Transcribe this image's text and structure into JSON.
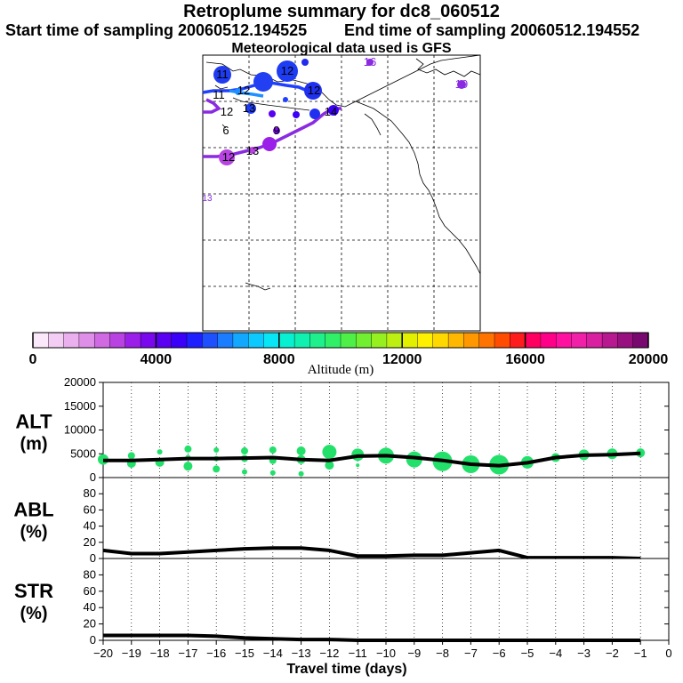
{
  "titles": {
    "line1": "Retroplume summary for dc8_060512",
    "line2a": "Start time of sampling 20060512.194525",
    "line2b": "End time of sampling 20060512.194552",
    "line3": "Meteorological data used is GFS"
  },
  "colors": {
    "green": "#22e06a",
    "line": "#000000",
    "traj_blue": "#2040ff",
    "traj_purple": "#8a2be2",
    "traj_lightblue": "#1e90ff"
  },
  "map_labels": [
    "11",
    "12",
    "11",
    "12",
    "14",
    "12",
    "13",
    "16",
    "19",
    "12",
    "9",
    "6",
    "12",
    "13",
    "13"
  ],
  "colorbar": {
    "title": "Altitude (m)",
    "ticks": [
      "0",
      "4000",
      "8000",
      "12000",
      "16000",
      "20000"
    ],
    "colors": [
      "#fbe8fb",
      "#f3cdf3",
      "#eab0ee",
      "#df8fe8",
      "#cf6ae3",
      "#b843e2",
      "#9a1fe8",
      "#7a08ee",
      "#5a00f2",
      "#3a00f8",
      "#1f20ff",
      "#1e50ff",
      "#1a7dff",
      "#12a8ff",
      "#0cc9ff",
      "#08e6f5",
      "#08f0d2",
      "#10f0b0",
      "#1ef08c",
      "#30f068",
      "#4ef048",
      "#70f030",
      "#96f020",
      "#bdf010",
      "#e2f000",
      "#fff000",
      "#ffd800",
      "#ffb800",
      "#ff9800",
      "#ff7400",
      "#ff4c00",
      "#ff1c1c",
      "#ff0060",
      "#ff0088",
      "#ff10a0",
      "#f020a8",
      "#d820a0",
      "#b81890",
      "#981080",
      "#780870"
    ]
  },
  "chart_data": [
    {
      "type": "line",
      "ylabel": "ALT\n(m)",
      "ylabel_top": "ALT",
      "ylabel_bottom": "(m)",
      "ylim": [
        0,
        20000
      ],
      "yticks": [
        "0",
        "5000",
        "10000",
        "15000",
        "20000"
      ],
      "xlim": [
        -20,
        0
      ],
      "x": [
        -20,
        -19,
        -18,
        -17,
        -16,
        -15,
        -14,
        -13,
        -12,
        -11,
        -10,
        -9,
        -8,
        -7,
        -6,
        -5,
        -4,
        -3,
        -2,
        -1
      ],
      "values": [
        3600,
        3600,
        3800,
        4000,
        4000,
        4100,
        4200,
        3800,
        3600,
        4500,
        4600,
        4200,
        3600,
        2800,
        2500,
        3100,
        4200,
        4700,
        4800,
        5100
      ],
      "markers": [
        {
          "x": -20,
          "y": 3800,
          "r": 6
        },
        {
          "x": -19,
          "y": 4600,
          "r": 4
        },
        {
          "x": -19,
          "y": 3000,
          "r": 5
        },
        {
          "x": -18,
          "y": 5400,
          "r": 3
        },
        {
          "x": -18,
          "y": 3200,
          "r": 5
        },
        {
          "x": -17,
          "y": 6000,
          "r": 4
        },
        {
          "x": -17,
          "y": 4200,
          "r": 3
        },
        {
          "x": -17,
          "y": 2400,
          "r": 5
        },
        {
          "x": -16,
          "y": 5800,
          "r": 3
        },
        {
          "x": -16,
          "y": 4000,
          "r": 3
        },
        {
          "x": -16,
          "y": 1800,
          "r": 4
        },
        {
          "x": -15,
          "y": 5600,
          "r": 4
        },
        {
          "x": -15,
          "y": 4000,
          "r": 4
        },
        {
          "x": -15,
          "y": 1200,
          "r": 3
        },
        {
          "x": -14,
          "y": 5800,
          "r": 4
        },
        {
          "x": -14,
          "y": 3600,
          "r": 4
        },
        {
          "x": -14,
          "y": 1000,
          "r": 3
        },
        {
          "x": -13,
          "y": 5600,
          "r": 5
        },
        {
          "x": -13,
          "y": 3800,
          "r": 5
        },
        {
          "x": -13,
          "y": 800,
          "r": 3
        },
        {
          "x": -12,
          "y": 5400,
          "r": 8
        },
        {
          "x": -12,
          "y": 2600,
          "r": 5
        },
        {
          "x": -11,
          "y": 4800,
          "r": 7
        },
        {
          "x": -11,
          "y": 2600,
          "r": 2
        },
        {
          "x": -10,
          "y": 4600,
          "r": 9
        },
        {
          "x": -9,
          "y": 3800,
          "r": 9
        },
        {
          "x": -8,
          "y": 3400,
          "r": 11
        },
        {
          "x": -7,
          "y": 2800,
          "r": 10
        },
        {
          "x": -6,
          "y": 2700,
          "r": 11
        },
        {
          "x": -5,
          "y": 3200,
          "r": 7
        },
        {
          "x": -4,
          "y": 4200,
          "r": 5
        },
        {
          "x": -3,
          "y": 4800,
          "r": 6
        },
        {
          "x": -2,
          "y": 5000,
          "r": 6
        },
        {
          "x": -1,
          "y": 5200,
          "r": 5
        }
      ]
    },
    {
      "type": "line",
      "ylabel_top": "ABL",
      "ylabel_bottom": "(%)",
      "ylim": [
        0,
        100
      ],
      "yticks": [
        "0",
        "20",
        "40",
        "60",
        "80"
      ],
      "xlim": [
        -20,
        0
      ],
      "x": [
        -20,
        -19,
        -18,
        -17,
        -16,
        -15,
        -14,
        -13,
        -12,
        -11,
        -10,
        -9,
        -8,
        -7,
        -6,
        -5,
        -4,
        -3,
        -2,
        -1
      ],
      "values": [
        10,
        6,
        6,
        8,
        10,
        12,
        13,
        13,
        10,
        3,
        3,
        4,
        4,
        7,
        10,
        1,
        1,
        1,
        1,
        0
      ]
    },
    {
      "type": "line",
      "ylabel_top": "STR",
      "ylabel_bottom": "(%)",
      "ylim": [
        0,
        100
      ],
      "yticks": [
        "0",
        "20",
        "40",
        "60",
        "80"
      ],
      "xlim": [
        -20,
        0
      ],
      "x": [
        -20,
        -19,
        -18,
        -17,
        -16,
        -15,
        -14,
        -13,
        -12,
        -11,
        -10,
        -9,
        -8,
        -7,
        -6,
        -5,
        -4,
        -3,
        -2,
        -1
      ],
      "values": [
        6,
        6,
        6,
        6,
        5,
        3,
        2,
        1,
        1,
        0,
        0,
        0,
        0,
        0,
        0,
        0,
        0,
        0,
        0,
        0
      ],
      "xticks": [
        "-20",
        "-19",
        "-18",
        "-17",
        "-16",
        "-15",
        "-14",
        "-13",
        "-12",
        "-11",
        "-10",
        "-9",
        "-8",
        "-7",
        "-6",
        "-5",
        "-4",
        "-3",
        "-2",
        "-1",
        "0"
      ],
      "xlabel": "Travel time (days)"
    }
  ]
}
